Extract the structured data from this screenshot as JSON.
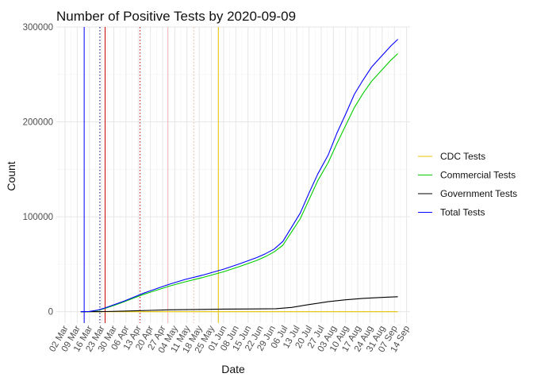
{
  "chart_data": {
    "type": "line",
    "title": "Number of Positive Tests by  2020-09-09",
    "xlabel": "Date",
    "ylabel": "Count",
    "ylim": [
      -12000,
      300000
    ],
    "xlim": [
      "2020-02-26",
      "2020-09-16"
    ],
    "grid": true,
    "legend_position": "right",
    "y_ticks": [
      0,
      100000,
      200000,
      300000
    ],
    "y_tick_labels": [
      "0",
      "100000",
      "200000",
      "300000"
    ],
    "x_ticks": [
      "2020-03-02",
      "2020-03-09",
      "2020-03-16",
      "2020-03-23",
      "2020-03-30",
      "2020-04-06",
      "2020-04-13",
      "2020-04-20",
      "2020-04-27",
      "2020-05-04",
      "2020-05-11",
      "2020-05-18",
      "2020-05-25",
      "2020-06-01",
      "2020-06-08",
      "2020-06-15",
      "2020-06-22",
      "2020-06-29",
      "2020-07-06",
      "2020-07-13",
      "2020-07-20",
      "2020-07-27",
      "2020-08-03",
      "2020-08-10",
      "2020-08-17",
      "2020-08-24",
      "2020-08-31",
      "2020-09-07",
      "2020-09-14"
    ],
    "x_tick_labels": [
      "02 Mar",
      "09 Mar",
      "16 Mar",
      "23 Mar",
      "30 Mar",
      "06 Apr",
      "13 Apr",
      "20 Apr",
      "27 Apr",
      "04 May",
      "11 May",
      "18 May",
      "25 May",
      "01 Jun",
      "08 Jun",
      "15 Jun",
      "22 Jun",
      "29 Jun",
      "06 Jul",
      "13 Jul",
      "20 Jul",
      "27 Jul",
      "03 Aug",
      "10 Aug",
      "17 Aug",
      "24 Aug",
      "31 Aug",
      "07 Sep",
      "14 Sep"
    ],
    "vertical_lines": [
      {
        "x": "2020-03-13",
        "color": "#0000ff",
        "style": "solid"
      },
      {
        "x": "2020-03-22",
        "color": "#000080",
        "style": "dotted"
      },
      {
        "x": "2020-03-25",
        "color": "#cc0000",
        "style": "solid"
      },
      {
        "x": "2020-04-14",
        "color": "#cc0000",
        "style": "dotted"
      },
      {
        "x": "2020-04-30",
        "color": "#f4b6b6",
        "style": "solid"
      },
      {
        "x": "2020-05-15",
        "color": "#f4b6b6",
        "style": "dotted"
      },
      {
        "x": "2020-05-29",
        "color": "#e6c200",
        "style": "solid"
      }
    ],
    "series": [
      {
        "name": "CDC Tests",
        "color": "#e6c200",
        "x": [
          "2020-03-11",
          "2020-03-20",
          "2020-04-01",
          "2020-06-01",
          "2020-09-09"
        ],
        "values": [
          0,
          0,
          0,
          0,
          0
        ]
      },
      {
        "name": "Commercial Tests",
        "color": "#00cc00",
        "x": [
          "2020-03-11",
          "2020-03-16",
          "2020-03-21",
          "2020-03-25",
          "2020-03-30",
          "2020-04-05",
          "2020-04-10",
          "2020-04-15",
          "2020-04-20",
          "2020-04-25",
          "2020-05-01",
          "2020-05-10",
          "2020-05-20",
          "2020-06-01",
          "2020-06-10",
          "2020-06-20",
          "2020-06-25",
          "2020-06-30",
          "2020-07-05",
          "2020-07-10",
          "2020-07-15",
          "2020-07-20",
          "2020-07-25",
          "2020-07-31",
          "2020-08-05",
          "2020-08-10",
          "2020-08-15",
          "2020-08-20",
          "2020-08-25",
          "2020-08-31",
          "2020-09-05",
          "2020-09-09"
        ],
        "values": [
          0,
          200,
          1500,
          3500,
          6500,
          10500,
          14000,
          17500,
          20500,
          23500,
          27000,
          31500,
          36000,
          42000,
          47500,
          54000,
          58000,
          63000,
          70000,
          84000,
          98000,
          118000,
          138000,
          157000,
          177000,
          196000,
          215000,
          230000,
          243000,
          255000,
          265000,
          272000
        ]
      },
      {
        "name": "Government Tests",
        "color": "#000000",
        "x": [
          "2020-03-11",
          "2020-03-25",
          "2020-04-05",
          "2020-04-20",
          "2020-05-01",
          "2020-05-20",
          "2020-06-01",
          "2020-06-20",
          "2020-07-01",
          "2020-07-10",
          "2020-07-20",
          "2020-07-31",
          "2020-08-10",
          "2020-08-20",
          "2020-08-31",
          "2020-09-09"
        ],
        "values": [
          0,
          100,
          600,
          1400,
          2000,
          2400,
          2700,
          2900,
          3100,
          4500,
          7500,
          10500,
          12500,
          14000,
          15000,
          15800
        ]
      },
      {
        "name": "Total Tests",
        "color": "#0000ff",
        "x": [
          "2020-03-11",
          "2020-03-16",
          "2020-03-21",
          "2020-03-25",
          "2020-03-30",
          "2020-04-05",
          "2020-04-10",
          "2020-04-15",
          "2020-04-20",
          "2020-04-25",
          "2020-05-01",
          "2020-05-10",
          "2020-05-20",
          "2020-06-01",
          "2020-06-10",
          "2020-06-20",
          "2020-06-25",
          "2020-06-30",
          "2020-07-05",
          "2020-07-10",
          "2020-07-15",
          "2020-07-20",
          "2020-07-25",
          "2020-07-31",
          "2020-08-05",
          "2020-08-10",
          "2020-08-15",
          "2020-08-20",
          "2020-08-25",
          "2020-08-31",
          "2020-09-05",
          "2020-09-09"
        ],
        "values": [
          0,
          250,
          1800,
          4000,
          7200,
          11200,
          15000,
          18800,
          22000,
          25200,
          29000,
          34000,
          38500,
          44800,
          50300,
          57000,
          61000,
          66000,
          74000,
          89000,
          104000,
          125000,
          145000,
          165000,
          188000,
          208000,
          229000,
          244000,
          258000,
          270000,
          280000,
          287000
        ]
      }
    ]
  }
}
